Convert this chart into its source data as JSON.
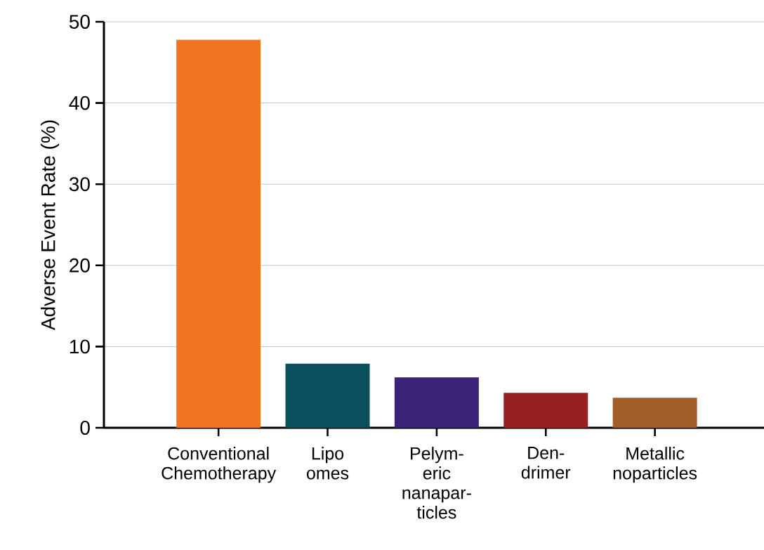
{
  "chart_data": {
    "type": "bar",
    "ylabel": "Adverse Event Rate (%)",
    "categories": [
      "Conventional Chemotherapy",
      "Lipo omes",
      "Pelym-eric nanapar-ticles",
      "Den-drimer",
      "Metallic noparticles"
    ],
    "values": [
      47.8,
      7.9,
      6.2,
      4.3,
      3.7
    ],
    "colors": [
      "#f07522",
      "#0a4f5c",
      "#3a2378",
      "#962121",
      "#a35d28"
    ],
    "ylim": [
      0,
      50
    ],
    "yticks": [
      0,
      10,
      20,
      30,
      40,
      50
    ],
    "grid": "y"
  }
}
